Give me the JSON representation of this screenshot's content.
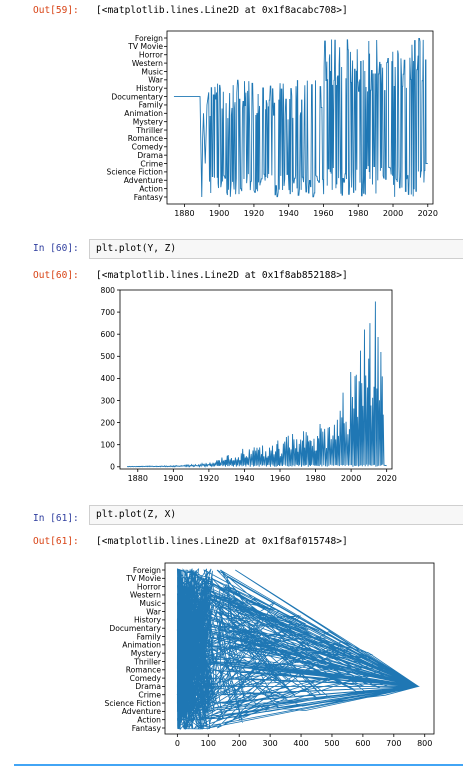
{
  "cells": [
    {
      "out_prompt": "Out[59]:",
      "out_text": "[<matplotlib.lines.Line2D at 0x1f8acabc708>]"
    },
    {
      "in_prompt": "In [60]:",
      "code": "plt.plot(Y, Z)",
      "out_prompt": "Out[60]:",
      "out_text": "[<matplotlib.lines.Line2D at 0x1f8ab852188>]"
    },
    {
      "in_prompt": "In [61]:",
      "code": "plt.plot(Z, X)",
      "out_prompt": "Out[61]:",
      "out_text": "[<matplotlib.lines.Line2D at 0x1f8af015748>]"
    }
  ],
  "chart_data": [
    {
      "type": "line",
      "x_range": [
        1870,
        2023
      ],
      "x_ticks": [
        1880,
        1900,
        1920,
        1940,
        1960,
        1980,
        2000,
        2020
      ],
      "y_categories": [
        "Foreign",
        "TV Movie",
        "Horror",
        "Western",
        "Music",
        "War",
        "History",
        "Documentary",
        "Family",
        "Animation",
        "Mystery",
        "Thriller",
        "Romance",
        "Comedy",
        "Drama",
        "Crime",
        "Science Fiction",
        "Adventure",
        "Action",
        "Fantasy"
      ],
      "series_color": "#1f77b4",
      "pattern": "Dense zigzag: flat at Documentary from ~1874-1889, dips to Fantasy ~1890, then oscillates Fantasy..War 1890-1960, Fantasy..Foreign 1960-2019, ends near Crime at 2020."
    },
    {
      "type": "line",
      "x_range": [
        1870,
        2023
      ],
      "y_range": [
        -10,
        800
      ],
      "x_ticks": [
        1880,
        1900,
        1920,
        1940,
        1960,
        1980,
        2000,
        2020
      ],
      "y_ticks": [
        0,
        100,
        200,
        300,
        400,
        500,
        600,
        700,
        800
      ],
      "series_color": "#1f77b4",
      "envelope": [
        {
          "x": 1874,
          "y": 2
        },
        {
          "x": 1900,
          "y": 5
        },
        {
          "x": 1910,
          "y": 10
        },
        {
          "x": 1920,
          "y": 18
        },
        {
          "x": 1925,
          "y": 35
        },
        {
          "x": 1932,
          "y": 60
        },
        {
          "x": 1940,
          "y": 90
        },
        {
          "x": 1950,
          "y": 100
        },
        {
          "x": 1960,
          "y": 130
        },
        {
          "x": 1970,
          "y": 160
        },
        {
          "x": 1980,
          "y": 180
        },
        {
          "x": 1990,
          "y": 270
        },
        {
          "x": 1995,
          "y": 350
        },
        {
          "x": 2000,
          "y": 440
        },
        {
          "x": 2005,
          "y": 580
        },
        {
          "x": 2010,
          "y": 680
        },
        {
          "x": 2015,
          "y": 780
        },
        {
          "x": 2018,
          "y": 400
        },
        {
          "x": 2019,
          "y": 20
        },
        {
          "x": 2020,
          "y": 5
        }
      ]
    },
    {
      "type": "line",
      "x_range": [
        -40,
        830
      ],
      "x_ticks": [
        0,
        100,
        200,
        300,
        400,
        500,
        600,
        700,
        800
      ],
      "y_categories": [
        "Foreign",
        "TV Movie",
        "Horror",
        "Western",
        "Music",
        "War",
        "History",
        "Documentary",
        "Family",
        "Animation",
        "Mystery",
        "Thriller",
        "Romance",
        "Comedy",
        "Drama",
        "Crime",
        "Science Fiction",
        "Adventure",
        "Action",
        "Fantasy"
      ],
      "series_color": "#1f77b4",
      "pattern": "Dense block of lines for x in 0-120 across all genres, fanning out to a convergence point at x~780 near Drama."
    }
  ]
}
